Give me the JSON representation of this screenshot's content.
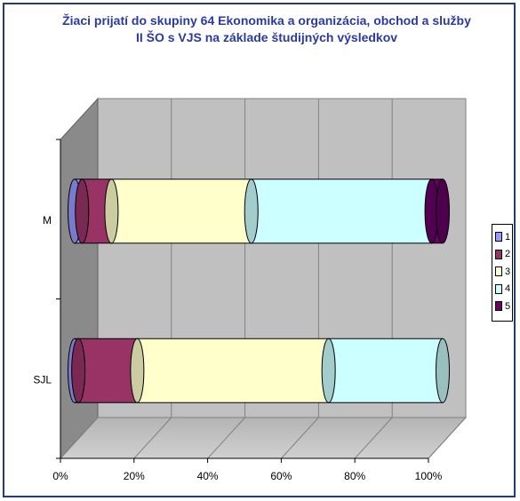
{
  "chart_data": {
    "type": "bar",
    "orientation": "horizontal",
    "stacked": "100%",
    "title_line1": "Žiaci prijatí do skupiny 64 Ekonomika a organizácia, obchod a služby",
    "title_line2": "II ŠO s VJS na základe študijných výsledkov",
    "categories": [
      "M",
      "SJL"
    ],
    "xlim": [
      0,
      100
    ],
    "x_ticks": [
      "0%",
      "20%",
      "40%",
      "60%",
      "80%",
      "100%"
    ],
    "grid": true,
    "legend_position": "right",
    "series": [
      {
        "name": "1",
        "color": "#9999ff",
        "values": [
          2,
          1
        ]
      },
      {
        "name": "2",
        "color": "#993366",
        "values": [
          8,
          16
        ]
      },
      {
        "name": "3",
        "color": "#ffffcc",
        "values": [
          38,
          52
        ]
      },
      {
        "name": "4",
        "color": "#ccffff",
        "values": [
          49,
          31
        ]
      },
      {
        "name": "5",
        "color": "#660066",
        "values": [
          3,
          0
        ]
      }
    ]
  }
}
